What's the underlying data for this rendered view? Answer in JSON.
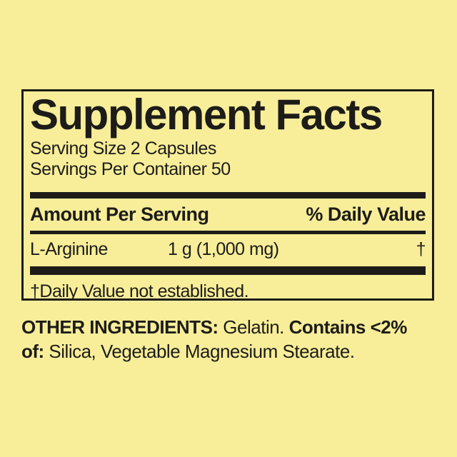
{
  "colors": {
    "background": "#f8ee9a",
    "ink": "#1d1c18"
  },
  "panel": {
    "title": "Supplement Facts",
    "serving_size": "Serving Size 2 Capsules",
    "servings_per_container": "Servings Per Container 50",
    "columns": {
      "amount_header": "Amount Per Serving",
      "daily_value_header": "% Daily Value"
    },
    "rows": [
      {
        "name": "L-Arginine",
        "amount": "1 g (1,000 mg)",
        "daily_value": "†"
      }
    ],
    "footnote": "†Daily Value not established."
  },
  "other_ingredients": {
    "line1": [
      {
        "text": "OTHER INGREDIENTS:",
        "bold": true
      },
      {
        "text": " Gelatin. ",
        "bold": false
      },
      {
        "text": "Contains <2%",
        "bold": true
      }
    ],
    "line2": [
      {
        "text": "of:",
        "bold": true
      },
      {
        "text": " Silica, Vegetable Magnesium Stearate.",
        "bold": false
      }
    ]
  }
}
